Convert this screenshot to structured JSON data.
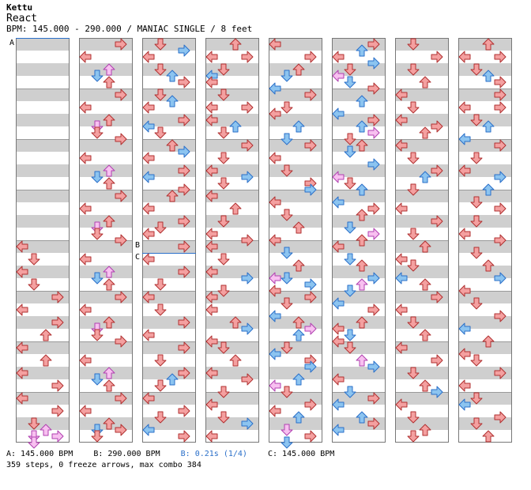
{
  "header": {
    "artist": "Kettu",
    "title": "React",
    "meta": "BPM: 145.000 - 290.000 / MANIAC SINGLE / 8 feet"
  },
  "markers": {
    "a": "A",
    "b": "B",
    "c": "C"
  },
  "footer": {
    "legend_a": "A: 145.000 BPM",
    "legend_b": "B: 290.000 BPM",
    "legend_b2": "B: 0.21s (1/4)",
    "legend_c": "C: 145.000 BPM",
    "summary": "359 steps, 0 freeze arrows, max combo 384"
  },
  "colors": {
    "red": "#f4a0a0",
    "red_stroke": "#b03030",
    "blue": "#8cc4f0",
    "blue_stroke": "#2a6fc9",
    "pink": "#f8c0f0",
    "pink_stroke": "#b040b0",
    "stripe": "#cfcfcf",
    "bpm_line": "#2a6fc9"
  },
  "chart_data": {
    "type": "step-chart",
    "columns": 8,
    "measures_per_column": 8,
    "lanes": [
      "left",
      "down",
      "up",
      "right"
    ],
    "bpm_changes": [
      {
        "label": "A",
        "bpm": 145.0
      },
      {
        "label": "B",
        "bpm": 290.0
      },
      {
        "label": "C",
        "bpm": 145.0
      }
    ],
    "steps": 359,
    "freeze_arrows": 0,
    "max_combo": 384
  }
}
